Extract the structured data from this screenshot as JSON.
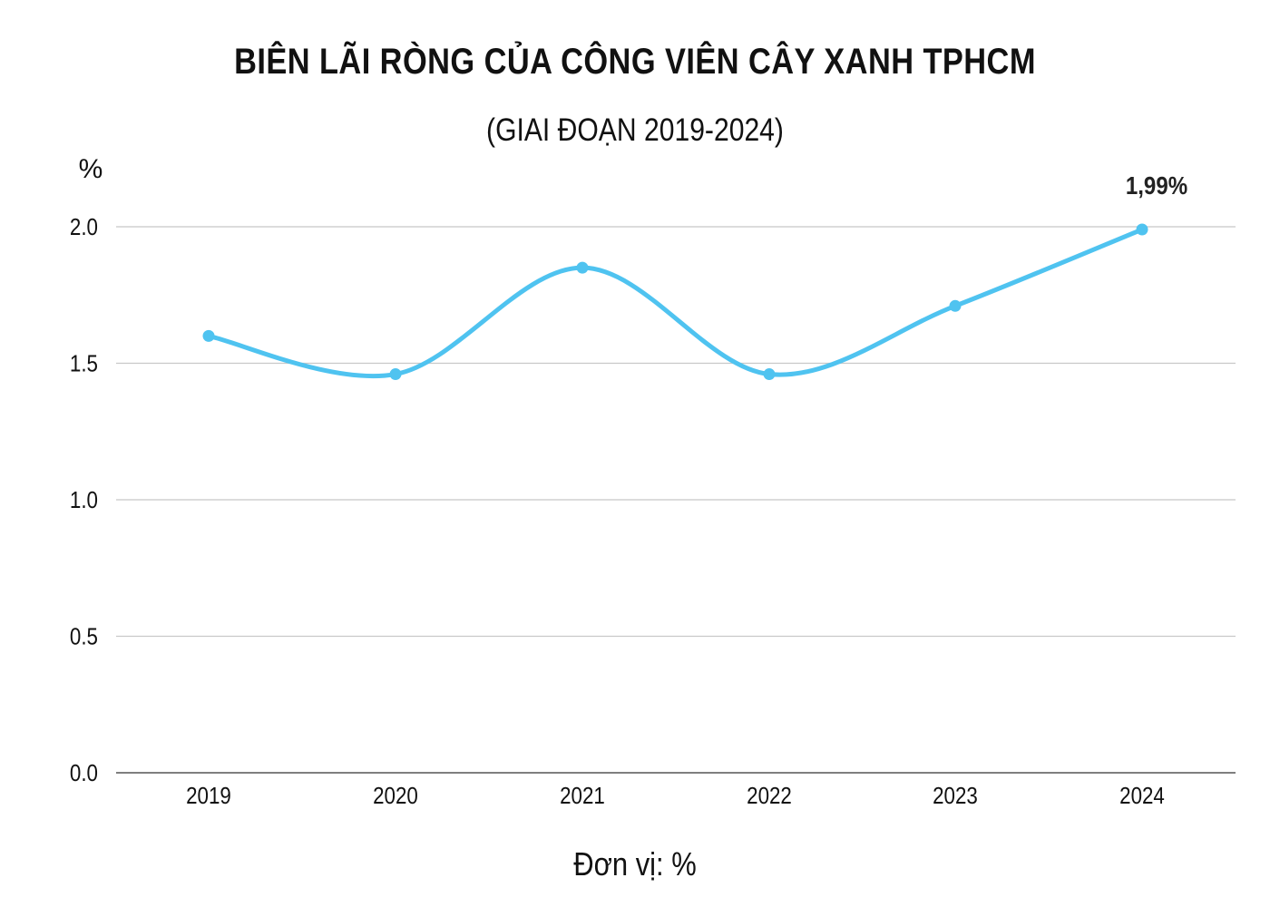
{
  "chart_data": {
    "type": "line",
    "title": "BIÊN LÃI RÒNG CỦA CÔNG VIÊN CÂY XANH TPHCM",
    "subtitle": "(GIAI ĐOẠN 2019-2024)",
    "ylabel": "%",
    "xlabel": "",
    "unit_note": "Đơn vị: %",
    "categories": [
      "2019",
      "2020",
      "2021",
      "2022",
      "2023",
      "2024"
    ],
    "series": [
      {
        "values": [
          1.6,
          1.46,
          1.85,
          1.46,
          1.71,
          1.99
        ],
        "color": "#4FC3F0"
      }
    ],
    "ylim": [
      0,
      2.0
    ],
    "yticks": [
      "0.0",
      "0.5",
      "1.0",
      "1.5",
      "2.0"
    ],
    "annotations": [
      {
        "category": "2024",
        "text": "1,99%"
      }
    ],
    "grid": true,
    "smooth": true
  }
}
